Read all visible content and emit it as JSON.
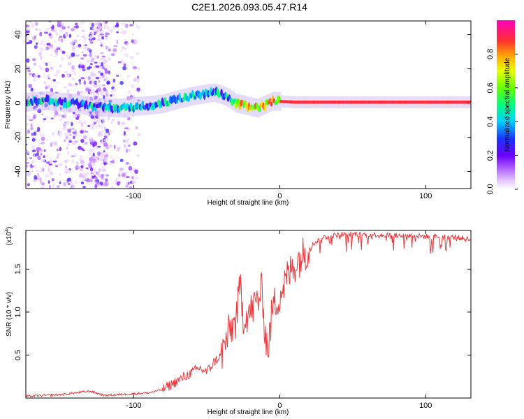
{
  "figure_title": "C2E1.2026.093.05.47.R14",
  "chart_data": [
    {
      "type": "heatmap",
      "name": "spectrogram",
      "title": "C2E1.2026.093.05.47.R14",
      "xlabel": "Height of straight line (km)",
      "ylabel": "Frequency (Hz)",
      "xlim": [
        -174,
        131
      ],
      "ylim": [
        -50,
        48
      ],
      "xticks": [
        -100,
        0,
        100
      ],
      "xtick_labels": [
        "-100",
        "0",
        "100"
      ],
      "yticks": [
        -40,
        -20,
        0,
        20,
        40
      ],
      "ytick_labels": [
        "-40",
        "-20",
        "0",
        "20",
        "40"
      ],
      "ridge": {
        "x": [
          -174,
          -160,
          -150,
          -140,
          -130,
          -120,
          -110,
          -100,
          -90,
          -80,
          -70,
          -60,
          -50,
          -45,
          -40,
          -35,
          -30,
          -25,
          -20,
          -15,
          -10,
          -5,
          0,
          10,
          40,
          131
        ],
        "freq": [
          0.5,
          1.5,
          0.5,
          0,
          -2,
          -2.5,
          -3,
          -2,
          -1.5,
          -0.5,
          2,
          4,
          5.5,
          6,
          5,
          3,
          0,
          -1,
          -2,
          -3,
          -1,
          1,
          1,
          0.5,
          0.5,
          0.5
        ]
      },
      "colorbar": {
        "label": "Normalized spectral amplitude",
        "range": [
          0,
          1
        ],
        "ticks": [
          0,
          0.2,
          0.4,
          0.6,
          0.8
        ],
        "tick_labels": [
          "0.0",
          "0.2",
          "0.4",
          "0.6",
          "0.8"
        ]
      }
    },
    {
      "type": "line",
      "name": "snr",
      "xlabel": "Height of straight line (km)",
      "ylabel": "SNR (10 * v/v)",
      "y_multiplier": "(x10",
      "y_multiplier_exp": "4",
      "y_multiplier_close": ")",
      "xlim": [
        -174,
        131
      ],
      "ylim": [
        0,
        1.95
      ],
      "xticks": [
        -100,
        0,
        100
      ],
      "xtick_labels": [
        "-100",
        "0",
        "100"
      ],
      "yticks": [
        0.5,
        1.0,
        1.5
      ],
      "ytick_labels": [
        "0.5",
        "1.0",
        "1.5"
      ],
      "color": "#e8383b",
      "series": [
        {
          "name": "SNR",
          "x": [
            -174,
            -150,
            -130,
            -120,
            -110,
            -100,
            -90,
            -80,
            -75,
            -70,
            -65,
            -60,
            -55,
            -50,
            -45,
            -40,
            -35,
            -30,
            -27,
            -25,
            -20,
            -15,
            -12,
            -10,
            -8,
            -5,
            0,
            5,
            10,
            15,
            20,
            25,
            30,
            40,
            50,
            60,
            70,
            80,
            90,
            100,
            110,
            120,
            125,
            131
          ],
          "y": [
            0.02,
            0.04,
            0.08,
            0.03,
            0.04,
            0.05,
            0.06,
            0.1,
            0.15,
            0.2,
            0.25,
            0.3,
            0.35,
            0.3,
            0.42,
            0.5,
            0.75,
            0.9,
            1.3,
            0.95,
            1.0,
            1.15,
            1.25,
            0.75,
            0.55,
            1.05,
            1.2,
            1.4,
            1.55,
            1.65,
            1.75,
            1.82,
            1.87,
            1.9,
            1.91,
            1.9,
            1.9,
            1.89,
            1.89,
            1.88,
            1.88,
            1.87,
            1.86,
            1.84
          ]
        }
      ]
    }
  ]
}
